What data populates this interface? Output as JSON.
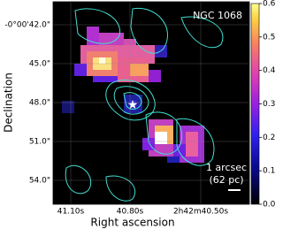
{
  "chart_data": {
    "type": "image",
    "title": "NGC 1068",
    "xlabel": "Right ascension",
    "ylabel": "Declination",
    "x_tick_labels": [
      "41.10s",
      "40.80s",
      "2h42m40.50s"
    ],
    "y_tick_labels": [
      "-0°00'42.0\"",
      "45.0\"",
      "48.0\"",
      "51.0\"",
      "54.0\""
    ],
    "scale_bar_label": [
      "1 arcsec",
      "(62 pc)"
    ],
    "colorbar": {
      "lim": [
        0,
        0.6
      ],
      "ticks": [
        {
          "value": 0,
          "label": "0.0"
        },
        0.1,
        0.2,
        0.3,
        0.4,
        0.5,
        0.6
      ]
    }
  }
}
